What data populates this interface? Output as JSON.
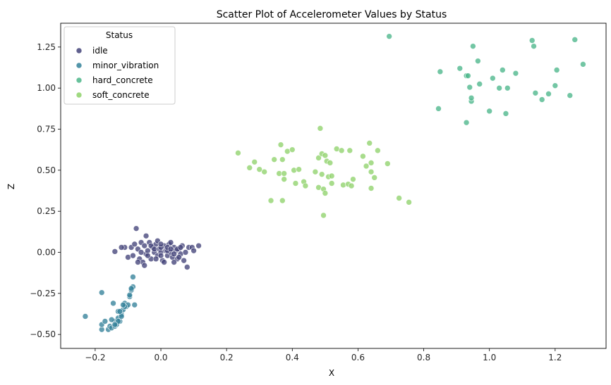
{
  "chart_data": {
    "type": "scatter",
    "title": "Scatter Plot of Accelerometer Values by Status",
    "xlabel": "X",
    "ylabel": "Z",
    "xlim": [
      -0.305,
      1.355
    ],
    "ylim": [
      -0.585,
      1.395
    ],
    "xticks": [
      -0.2,
      0.0,
      0.2,
      0.4,
      0.6,
      0.8,
      1.0,
      1.2
    ],
    "xtick_labels": [
      "−0.2",
      "0.0",
      "0.2",
      "0.4",
      "0.6",
      "0.8",
      "1.0",
      "1.2"
    ],
    "yticks": [
      -0.5,
      -0.25,
      0.0,
      0.25,
      0.5,
      0.75,
      1.0,
      1.25
    ],
    "ytick_labels": [
      "−0.50",
      "−0.25",
      "0.00",
      "0.25",
      "0.50",
      "0.75",
      "1.00",
      "1.25"
    ],
    "grid": false,
    "legend": {
      "title": "Status",
      "placement": "top-left"
    },
    "series": [
      {
        "name": "idle",
        "color": "#44447a",
        "points": [
          [
            -0.075,
            0.145
          ],
          [
            -0.045,
            0.1
          ],
          [
            -0.14,
            0.005
          ],
          [
            -0.11,
            0.03
          ],
          [
            -0.1,
            -0.03
          ],
          [
            -0.09,
            0.03
          ],
          [
            -0.08,
            0.05
          ],
          [
            -0.07,
            0.02
          ],
          [
            -0.065,
            -0.04
          ],
          [
            -0.06,
            0.06
          ],
          [
            -0.055,
            -0.06
          ],
          [
            -0.05,
            0.04
          ],
          [
            -0.045,
            -0.01
          ],
          [
            -0.04,
            0.01
          ],
          [
            -0.035,
            0.06
          ],
          [
            -0.03,
            -0.04
          ],
          [
            -0.025,
            0.03
          ],
          [
            -0.02,
            0.0
          ],
          [
            -0.015,
            0.05
          ],
          [
            -0.01,
            -0.02
          ],
          [
            -0.005,
            0.02
          ],
          [
            0.0,
            0.0
          ],
          [
            0.005,
            -0.05
          ],
          [
            0.01,
            0.04
          ],
          [
            0.015,
            0.01
          ],
          [
            0.02,
            -0.02
          ],
          [
            0.025,
            0.05
          ],
          [
            0.03,
            0.0
          ],
          [
            0.035,
            -0.03
          ],
          [
            0.04,
            0.03
          ],
          [
            0.045,
            0.01
          ],
          [
            0.05,
            -0.04
          ],
          [
            0.055,
            0.02
          ],
          [
            0.06,
            -0.01
          ],
          [
            0.065,
            0.04
          ],
          [
            0.07,
            -0.05
          ],
          [
            0.075,
            0.0
          ],
          [
            0.08,
            -0.09
          ],
          [
            0.085,
            0.03
          ],
          [
            0.095,
            0.03
          ],
          [
            0.115,
            0.04
          ],
          [
            0.1,
            0.01
          ],
          [
            -0.05,
            -0.08
          ],
          [
            -0.03,
            0.04
          ],
          [
            -0.01,
            0.07
          ],
          [
            0.01,
            -0.06
          ],
          [
            0.03,
            0.06
          ],
          [
            0.05,
            0.02
          ],
          [
            -0.085,
            -0.02
          ],
          [
            -0.015,
            -0.04
          ],
          [
            0.0,
            0.03
          ],
          [
            0.02,
            0.01
          ],
          [
            0.04,
            -0.06
          ],
          [
            0.06,
            0.03
          ],
          [
            -0.04,
            -0.02
          ],
          [
            -0.02,
            0.02
          ],
          [
            0.0,
            -0.02
          ],
          [
            0.02,
            0.03
          ],
          [
            0.04,
            -0.01
          ],
          [
            -0.06,
            0.0
          ],
          [
            -0.12,
            0.03
          ],
          [
            -0.07,
            -0.06
          ],
          [
            0.03,
            0.02
          ],
          [
            0.0,
            0.05
          ],
          [
            0.055,
            -0.03
          ]
        ]
      },
      {
        "name": "minor_vibration",
        "color": "#34829a",
        "points": [
          [
            -0.23,
            -0.39
          ],
          [
            -0.18,
            -0.245
          ],
          [
            -0.18,
            -0.47
          ],
          [
            -0.18,
            -0.44
          ],
          [
            -0.17,
            -0.42
          ],
          [
            -0.16,
            -0.47
          ],
          [
            -0.155,
            -0.45
          ],
          [
            -0.15,
            -0.46
          ],
          [
            -0.145,
            -0.31
          ],
          [
            -0.14,
            -0.42
          ],
          [
            -0.14,
            -0.45
          ],
          [
            -0.135,
            -0.44
          ],
          [
            -0.13,
            -0.36
          ],
          [
            -0.13,
            -0.4
          ],
          [
            -0.125,
            -0.42
          ],
          [
            -0.12,
            -0.38
          ],
          [
            -0.115,
            -0.35
          ],
          [
            -0.11,
            -0.31
          ],
          [
            -0.105,
            -0.33
          ],
          [
            -0.1,
            -0.32
          ],
          [
            -0.095,
            -0.27
          ],
          [
            -0.09,
            -0.23
          ],
          [
            -0.085,
            -0.21
          ],
          [
            -0.085,
            -0.15
          ],
          [
            -0.08,
            -0.32
          ],
          [
            -0.13,
            -0.42
          ],
          [
            -0.12,
            -0.39
          ],
          [
            -0.11,
            -0.33
          ],
          [
            -0.095,
            -0.26
          ],
          [
            -0.09,
            -0.22
          ],
          [
            -0.14,
            -0.44
          ],
          [
            -0.15,
            -0.41
          ],
          [
            -0.125,
            -0.36
          ],
          [
            -0.115,
            -0.32
          ]
        ]
      },
      {
        "name": "hard_concrete",
        "color": "#4cb68a",
        "points": [
          [
            0.695,
            1.315
          ],
          [
            0.845,
            0.875
          ],
          [
            0.85,
            1.1
          ],
          [
            0.91,
            1.12
          ],
          [
            0.93,
            0.79
          ],
          [
            0.93,
            1.075
          ],
          [
            0.935,
            1.075
          ],
          [
            0.94,
            1.005
          ],
          [
            0.945,
            0.92
          ],
          [
            0.945,
            0.94
          ],
          [
            0.95,
            1.255
          ],
          [
            0.965,
            1.165
          ],
          [
            0.97,
            1.025
          ],
          [
            1.0,
            0.86
          ],
          [
            1.01,
            1.06
          ],
          [
            1.03,
            1.0
          ],
          [
            1.04,
            1.11
          ],
          [
            1.05,
            0.845
          ],
          [
            1.055,
            1.0
          ],
          [
            1.08,
            1.09
          ],
          [
            1.13,
            1.29
          ],
          [
            1.135,
            1.255
          ],
          [
            1.14,
            0.97
          ],
          [
            1.16,
            0.93
          ],
          [
            1.18,
            0.965
          ],
          [
            1.2,
            1.015
          ],
          [
            1.205,
            1.11
          ],
          [
            1.245,
            0.955
          ],
          [
            1.26,
            1.295
          ],
          [
            1.285,
            1.145
          ]
        ]
      },
      {
        "name": "soft_concrete",
        "color": "#8fd26b",
        "points": [
          [
            0.235,
            0.605
          ],
          [
            0.27,
            0.515
          ],
          [
            0.285,
            0.55
          ],
          [
            0.3,
            0.505
          ],
          [
            0.315,
            0.49
          ],
          [
            0.335,
            0.315
          ],
          [
            0.345,
            0.565
          ],
          [
            0.36,
            0.48
          ],
          [
            0.365,
            0.655
          ],
          [
            0.37,
            0.315
          ],
          [
            0.37,
            0.565
          ],
          [
            0.375,
            0.445
          ],
          [
            0.375,
            0.48
          ],
          [
            0.385,
            0.615
          ],
          [
            0.4,
            0.625
          ],
          [
            0.405,
            0.5
          ],
          [
            0.41,
            0.42
          ],
          [
            0.42,
            0.505
          ],
          [
            0.435,
            0.43
          ],
          [
            0.44,
            0.405
          ],
          [
            0.47,
            0.49
          ],
          [
            0.48,
            0.395
          ],
          [
            0.48,
            0.575
          ],
          [
            0.485,
            0.755
          ],
          [
            0.49,
            0.6
          ],
          [
            0.49,
            0.475
          ],
          [
            0.495,
            0.385
          ],
          [
            0.5,
            0.59
          ],
          [
            0.5,
            0.36
          ],
          [
            0.495,
            0.225
          ],
          [
            0.505,
            0.555
          ],
          [
            0.51,
            0.46
          ],
          [
            0.515,
            0.545
          ],
          [
            0.52,
            0.42
          ],
          [
            0.52,
            0.465
          ],
          [
            0.535,
            0.63
          ],
          [
            0.55,
            0.62
          ],
          [
            0.555,
            0.41
          ],
          [
            0.57,
            0.415
          ],
          [
            0.575,
            0.62
          ],
          [
            0.58,
            0.405
          ],
          [
            0.585,
            0.445
          ],
          [
            0.615,
            0.585
          ],
          [
            0.625,
            0.525
          ],
          [
            0.635,
            0.665
          ],
          [
            0.64,
            0.545
          ],
          [
            0.64,
            0.49
          ],
          [
            0.64,
            0.39
          ],
          [
            0.65,
            0.455
          ],
          [
            0.66,
            0.62
          ],
          [
            0.69,
            0.54
          ],
          [
            0.725,
            0.33
          ],
          [
            0.755,
            0.305
          ]
        ]
      }
    ]
  }
}
